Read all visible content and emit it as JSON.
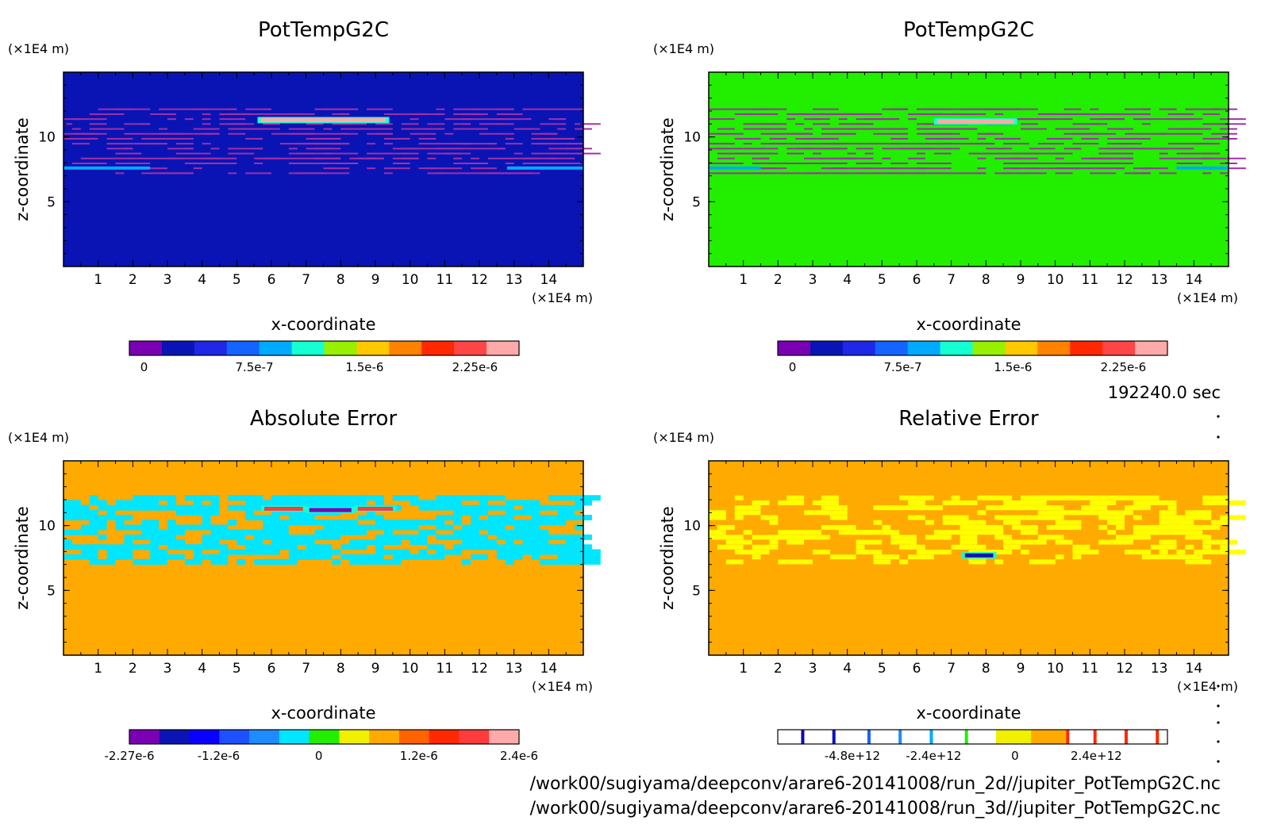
{
  "colors": {
    "background": "#ffffff",
    "panel_fill": [
      "#0a14b4",
      "#22ee00",
      "#ffaa00"
    ]
  },
  "time_label": "192240.0 sec",
  "files": [
    "/work00/sugiyama/deepconv/arare6-20141008/run_2d//jupiter_PotTempG2C.nc",
    "/work00/sugiyama/deepconv/arare6-20141008/run_3d//jupiter_PotTempG2C.nc"
  ],
  "chart_data": [
    {
      "type": "heatmap",
      "title": "PotTempG2C",
      "xlabel": "x-coordinate",
      "ylabel": "z-coordinate",
      "x_unit": "(×1E4 m)",
      "y_unit": "(×1E4 m)",
      "xlim": [
        0,
        15
      ],
      "ylim": [
        0,
        15
      ],
      "x_ticks": [
        "1",
        "2",
        "3",
        "4",
        "5",
        "6",
        "7",
        "8",
        "9",
        "10",
        "11",
        "12",
        "13",
        "14"
      ],
      "y_ticks": [
        "5",
        "10"
      ],
      "colorbar": {
        "labels": [
          "0",
          "7.5e-7",
          "1.5e-6",
          "2.25e-6"
        ],
        "range": [
          -1e-07,
          2.55e-06
        ]
      },
      "features": [
        {
          "kind": "band",
          "x": [
            5.6,
            9.4
          ],
          "z": 11.3,
          "level": 2.4e-06
        },
        {
          "kind": "line",
          "x": [
            0,
            2.5
          ],
          "z": 7.6,
          "level": 1e-06
        },
        {
          "kind": "line",
          "x": [
            12.8,
            15
          ],
          "z": 7.6,
          "level": 1e-06
        }
      ]
    },
    {
      "type": "heatmap",
      "title": "PotTempG2C",
      "xlabel": "x-coordinate",
      "ylabel": "z-coordinate",
      "x_unit": "(×1E4 m)",
      "y_unit": "(×1E4 m)",
      "xlim": [
        0,
        15
      ],
      "ylim": [
        0,
        15
      ],
      "x_ticks": [
        "1",
        "2",
        "3",
        "4",
        "5",
        "6",
        "7",
        "8",
        "9",
        "10",
        "11",
        "12",
        "13",
        "14"
      ],
      "y_ticks": [
        "5",
        "10"
      ],
      "colorbar": {
        "labels": [
          "0",
          "7.5e-7",
          "1.5e-6",
          "2.25e-6"
        ],
        "range": [
          -1e-07,
          2.55e-06
        ]
      },
      "features": [
        {
          "kind": "band",
          "x": [
            6.5,
            8.9
          ],
          "z": 11.2,
          "level": 2.4e-06
        },
        {
          "kind": "line",
          "x": [
            0,
            1.5
          ],
          "z": 7.6,
          "level": 1e-06
        },
        {
          "kind": "line",
          "x": [
            13.5,
            15
          ],
          "z": 7.6,
          "level": 1e-06
        }
      ]
    },
    {
      "type": "heatmap",
      "title": "Absolute Error",
      "xlabel": "x-coordinate",
      "ylabel": "z-coordinate",
      "x_unit": "(×1E4 m)",
      "y_unit": "(×1E4 m)",
      "xlim": [
        0,
        15
      ],
      "ylim": [
        0,
        15
      ],
      "x_ticks": [
        "1",
        "2",
        "3",
        "4",
        "5",
        "6",
        "7",
        "8",
        "9",
        "10",
        "11",
        "12",
        "13",
        "14"
      ],
      "y_ticks": [
        "5",
        "10"
      ],
      "colorbar": {
        "labels": [
          "-2.27e-6",
          "-1.2e-6",
          "0",
          "1.2e-6",
          "2.4e-6"
        ],
        "range": [
          -2.27e-06,
          2.4e-06
        ]
      },
      "features": [
        {
          "kind": "band",
          "x": [
            5.7,
            7.0
          ],
          "z": 11.3,
          "level": 2e-06
        },
        {
          "kind": "band",
          "x": [
            8.4,
            9.6
          ],
          "z": 11.3,
          "level": 2e-06
        },
        {
          "kind": "band",
          "x": [
            7.0,
            8.4
          ],
          "z": 11.2,
          "level": -2e-06
        }
      ]
    },
    {
      "type": "heatmap",
      "title": "Relative Error",
      "xlabel": "x-coordinate",
      "ylabel": "z-coordinate",
      "x_unit": "(×1E4 m)",
      "y_unit": "(×1E4 m)",
      "xlim": [
        0,
        15
      ],
      "ylim": [
        0,
        15
      ],
      "x_ticks": [
        "1",
        "2",
        "3",
        "4",
        "5",
        "6",
        "7",
        "8",
        "9",
        "10",
        "11",
        "12",
        "13",
        "14"
      ],
      "y_ticks": [
        "5",
        "10"
      ],
      "colorbar": {
        "labels": [
          "-4.8e+12",
          "-2.4e+12",
          "0",
          "2.4e+12"
        ],
        "range": [
          -7000000000000.0,
          4500000000000.0
        ]
      },
      "features": [
        {
          "kind": "band",
          "x": [
            7.3,
            8.3
          ],
          "z": 7.7,
          "level": -4800000000000.0
        }
      ]
    }
  ]
}
